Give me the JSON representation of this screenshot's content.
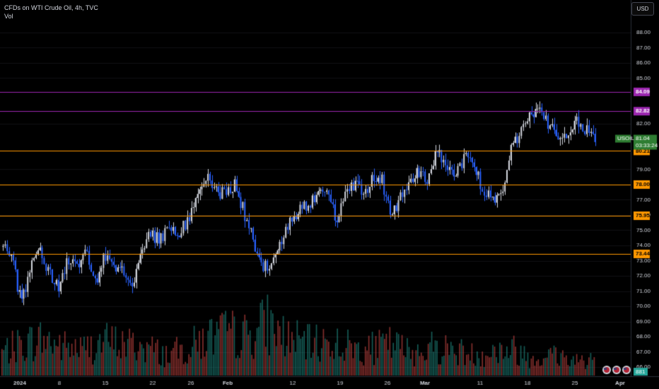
{
  "header": {
    "title": "CFDs on WTI Crude Oil, 4h, TVC",
    "volume_label": "Vol",
    "currency_button": "USD"
  },
  "colors": {
    "background": "#000000",
    "up_candle": "#d1d4dc",
    "down_candle": "#2962ff",
    "volume_up": "#26a69a",
    "volume_down": "#ef5350",
    "level_orange": "#ff9800",
    "level_purple": "#9c27b0",
    "last_price": "#2e7d32",
    "axis_text": "#d1d4dc"
  },
  "chart_data": {
    "type": "candlestick",
    "symbol": "USOIL",
    "interval": "4h",
    "last_price": "81.04",
    "countdown": "03:33:24",
    "volume_last": "881",
    "ylim": [
      65.4,
      89.2
    ],
    "y_ticks": [
      "88.00",
      "87.00",
      "86.00",
      "85.00",
      "82.00",
      "79.00",
      "77.00",
      "76.00",
      "75.00",
      "74.00",
      "73.00",
      "72.00",
      "71.00",
      "70.00",
      "69.00",
      "68.00",
      "67.00",
      "66.00"
    ],
    "x_ticks": [
      "2024",
      "8",
      "15",
      "22",
      "26",
      "Feb",
      "12",
      "19",
      "26",
      "Mar",
      "11",
      "18",
      "25",
      "Apr"
    ],
    "horizontal_levels": [
      {
        "value": 84.09,
        "label": "84.09",
        "color": "#9c27b0"
      },
      {
        "value": 82.82,
        "label": "82.82",
        "color": "#9c27b0"
      },
      {
        "value": 80.21,
        "label": "80.21",
        "color": "#ff9800"
      },
      {
        "value": 78.0,
        "label": "78.00",
        "color": "#ff9800"
      },
      {
        "value": 75.95,
        "label": "75.95",
        "color": "#ff9800"
      },
      {
        "value": 73.44,
        "label": "73.44",
        "color": "#ff9800"
      }
    ],
    "price_path": [
      73.9,
      73.0,
      70.1,
      72.8,
      73.6,
      72.2,
      71.1,
      73.1,
      72.6,
      73.9,
      71.5,
      73.4,
      72.6,
      72.1,
      71.3,
      73.9,
      74.7,
      74.4,
      75.2,
      74.9,
      75.7,
      77.1,
      78.4,
      77.6,
      77.3,
      78.0,
      76.3,
      74.4,
      72.3,
      73.0,
      74.1,
      75.6,
      76.2,
      76.8,
      77.4,
      77.3,
      75.7,
      77.6,
      78.1,
      77.4,
      78.5,
      78.2,
      76.0,
      77.3,
      78.1,
      78.9,
      78.4,
      80.3,
      78.9,
      78.6,
      80.0,
      78.9,
      77.6,
      76.9,
      77.7,
      80.4,
      81.6,
      82.4,
      82.9,
      81.8,
      81.2,
      81.0,
      82.3,
      81.6,
      81.0
    ],
    "volume_profile": [
      0.45,
      0.6,
      0.7,
      0.55,
      0.5,
      0.65,
      0.6,
      0.55,
      0.4,
      0.5,
      0.72,
      0.8,
      0.75,
      1.0,
      0.7,
      0.6,
      0.65,
      0.55,
      0.5,
      0.6,
      0.45,
      0.55,
      0.5,
      0.4,
      0.45,
      0.5,
      0.35,
      0.4,
      0.3,
      0.35
    ],
    "volume_icons": 3
  }
}
